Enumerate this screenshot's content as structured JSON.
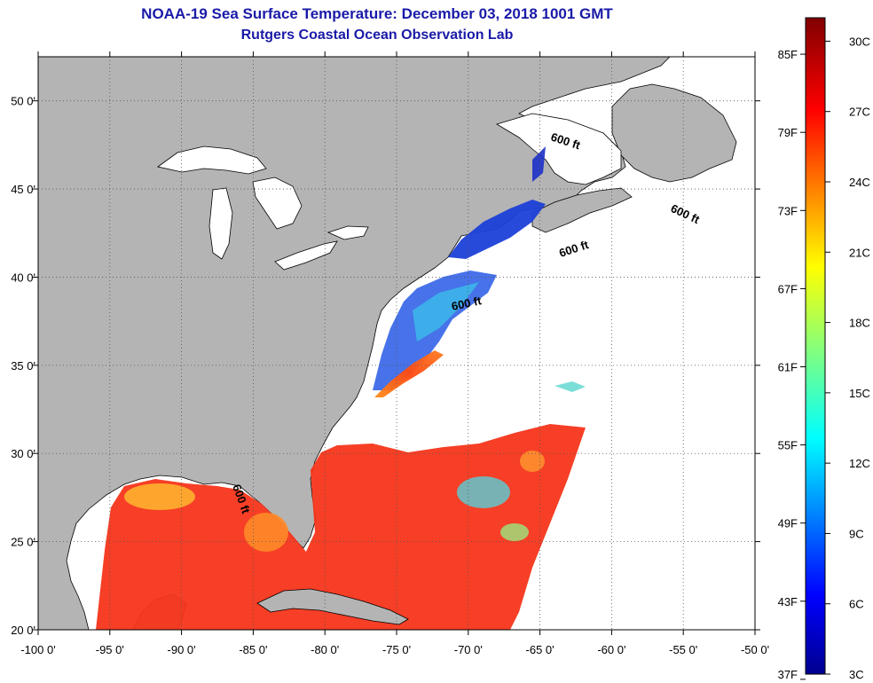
{
  "title": "NOAA-19 Sea Surface Temperature:  December 03, 2018 1001 GMT",
  "subtitle": "Rutgers Coastal Ocean Observation Lab",
  "map": {
    "lon_range": [
      -100,
      -50
    ],
    "lat_range": [
      20,
      52.5
    ],
    "x_ticks": [
      {
        "lon": -100,
        "label": "-100 0'"
      },
      {
        "lon": -95,
        "label": "-95 0'"
      },
      {
        "lon": -90,
        "label": "-90 0'"
      },
      {
        "lon": -85,
        "label": "-85 0'"
      },
      {
        "lon": -80,
        "label": "-80 0'"
      },
      {
        "lon": -75,
        "label": "-75 0'"
      },
      {
        "lon": -70,
        "label": "-70 0'"
      },
      {
        "lon": -65,
        "label": "-65 0'"
      },
      {
        "lon": -60,
        "label": "-60 0'"
      },
      {
        "lon": -55,
        "label": "-55 0'"
      },
      {
        "lon": -50,
        "label": "-50 0'"
      }
    ],
    "y_ticks": [
      {
        "lat": 50,
        "label": "50 0'"
      },
      {
        "lat": 45,
        "label": "45 0'"
      },
      {
        "lat": 40,
        "label": "40 0'"
      },
      {
        "lat": 35,
        "label": "35 0'"
      },
      {
        "lat": 30,
        "label": "30 0'"
      },
      {
        "lat": 25,
        "label": "25 0'"
      },
      {
        "lat": 20,
        "label": "20 0'"
      }
    ],
    "contour_labels": [
      "600 ft",
      "600 ft",
      "600 ft",
      "600 ft",
      "600 ft"
    ],
    "colors": {
      "land": "#b4b4b4",
      "no_data": "#ffffff",
      "coast": "#000000"
    }
  },
  "colorbar": {
    "range_c": [
      3,
      31
    ],
    "f_labels": [
      "85F",
      "79F",
      "73F",
      "67F",
      "61F",
      "55F",
      "49F",
      "43F",
      "37F"
    ],
    "c_labels": [
      "30C",
      "27C",
      "24C",
      "21C",
      "18C",
      "15C",
      "12C",
      "9C",
      "6C",
      "3C"
    ],
    "f_values": [
      85,
      79,
      73,
      67,
      61,
      55,
      49,
      43,
      37
    ],
    "c_values": [
      30,
      27,
      24,
      21,
      18,
      15,
      12,
      9,
      6,
      3
    ]
  }
}
